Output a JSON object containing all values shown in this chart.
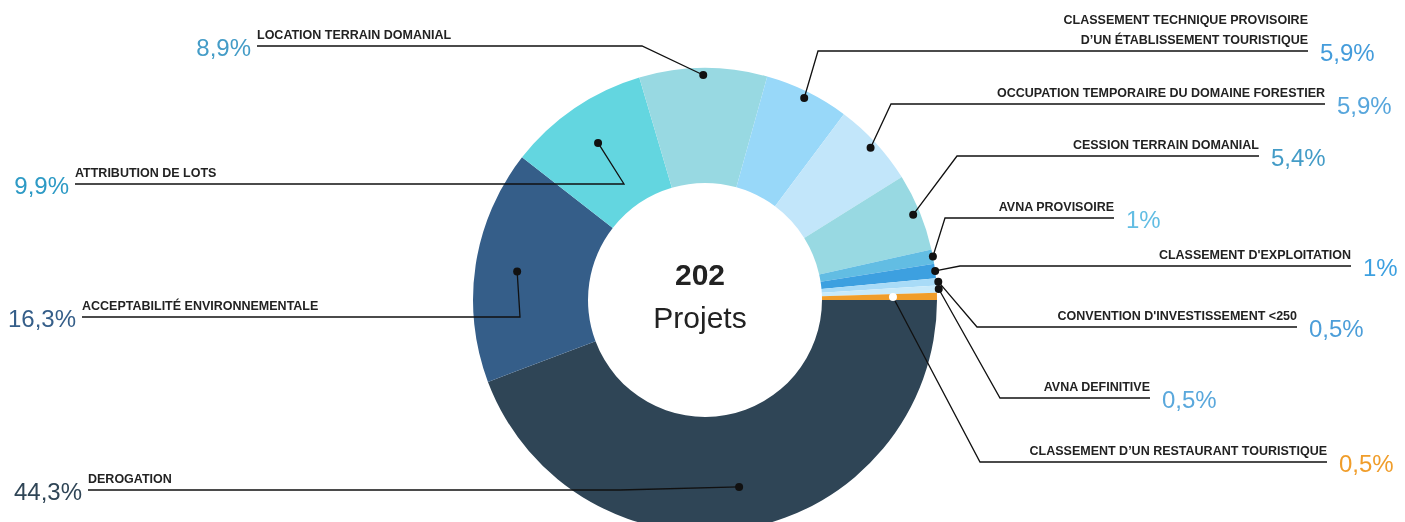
{
  "chart_data": {
    "type": "donut",
    "title": "202",
    "subtitle": "Projets",
    "categories": [
      "DEROGATION",
      "ACCEPTABILITÉ ENVIRONNEMENTALE",
      "ATTRIBUTION DE LOTS",
      "LOCATION TERRAIN DOMANIAL",
      "CLASSEMENT TECHNIQUE PROVISOIRE D’UN ÉTABLISSEMENT TOURISTIQUE",
      "OCCUPATION TEMPORAIRE DU DOMAINE FORESTIER",
      "CESSION TERRAIN DOMANIAL",
      "AVNA PROVISOIRE",
      "CLASSEMENT D'EXPLOITATION",
      "CONVENTION D'INVESTISSEMENT <250",
      "AVNA DEFINITIVE",
      "CLASSEMENT D’UN RESTAURANT TOURISTIQUE"
    ],
    "values": [
      44.3,
      16.3,
      9.9,
      8.9,
      5.9,
      5.9,
      5.4,
      1,
      1,
      0.5,
      0.5,
      0.5
    ],
    "value_labels": [
      "44,3%",
      "16,3%",
      "9,9%",
      "8,9%",
      "5,9%",
      "5,9%",
      "5,4%",
      "1%",
      "1%",
      "0,5%",
      "0,5%",
      "0,5%"
    ],
    "colors": [
      "#2f4556",
      "#355e89",
      "#63d6e0",
      "#98d9e2",
      "#98d8f9",
      "#c2e6fa",
      "#98d9e2",
      "#62bde3",
      "#3da0e0",
      "#a8dbf7",
      "#c8eafa",
      "#f09d2a"
    ]
  }
}
